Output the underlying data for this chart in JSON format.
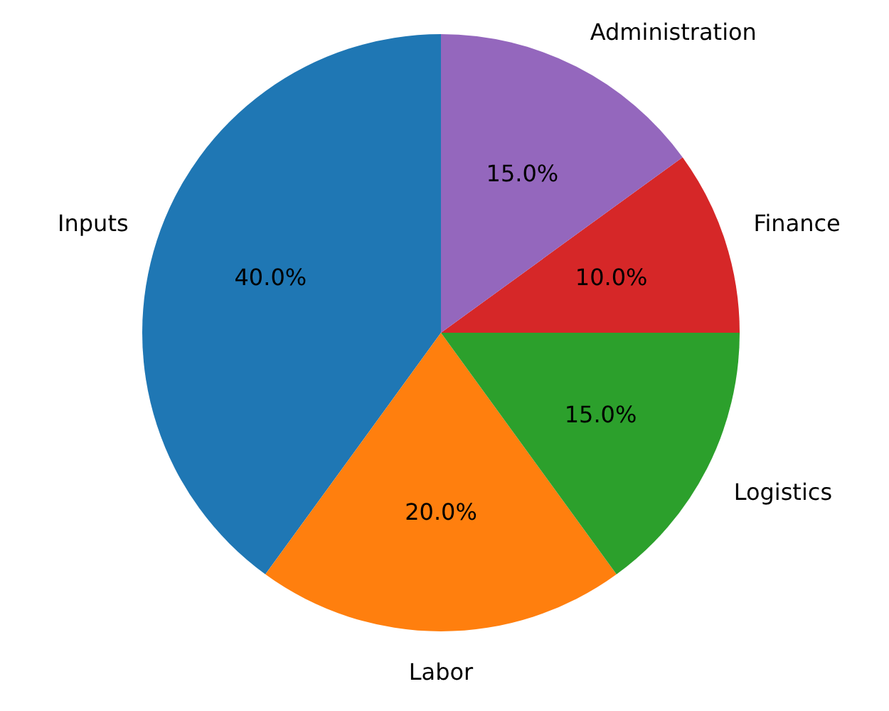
{
  "chart_data": {
    "type": "pie",
    "categories": [
      "Inputs",
      "Labor",
      "Logistics",
      "Finance",
      "Administration"
    ],
    "values": [
      40,
      20,
      15,
      10,
      15
    ],
    "colors": [
      "#1f77b4",
      "#ff7f0e",
      "#2ca02c",
      "#d62728",
      "#9467bd"
    ],
    "value_labels": [
      "40.0%",
      "20.0%",
      "15.0%",
      "10.0%",
      "15.0%"
    ]
  }
}
